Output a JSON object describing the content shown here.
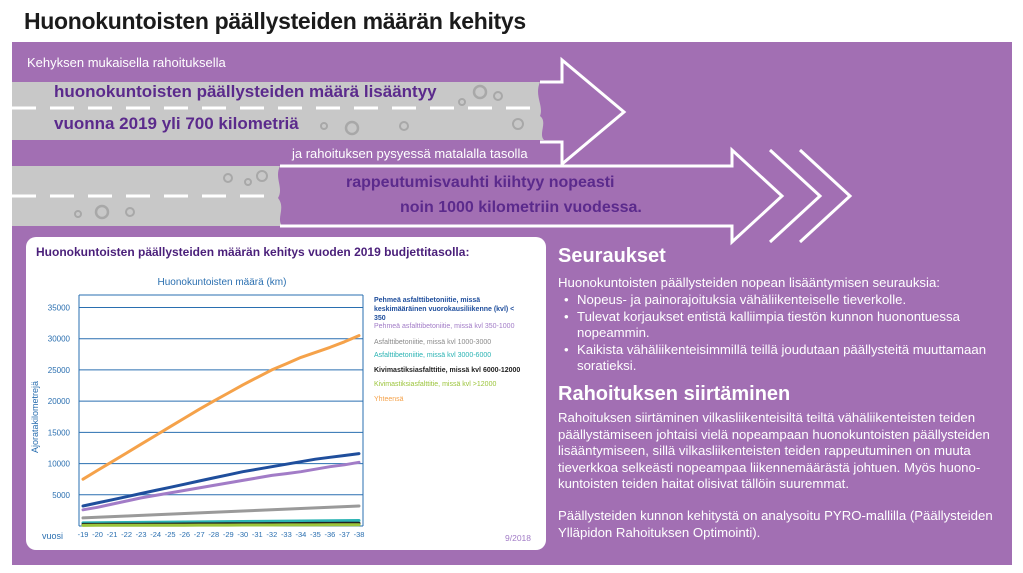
{
  "page": {
    "title": "Huonokuntoisten päällysteiden määrän kehitys",
    "road1_caption": "Kehyksen mukaisella rahoituksella",
    "road1_line1": "huonokuntoisten päällysteiden määrä lisääntyy",
    "road1_line2": "vuonna 2019 yli 700 kilometriä",
    "road2_caption": "ja rahoituksen pysyessä matalalla tasolla",
    "road2_line1": "rappeutumisvauhti kiihtyy nopeasti",
    "road2_line2": "noin 1000 kilometriin vuodessa.",
    "colors": {
      "panel": "#a26fb3",
      "road": "#c8c8c8",
      "text_purple": "#5b2a8c"
    }
  },
  "consequences": {
    "heading": "Seuraukset",
    "intro": "Huonokuntoisten päällysteiden nopean lisääntymisen seurauksia:",
    "bullets": [
      "Nopeus- ja painorajoituksia vähäliikenteiselle tieverkolle.",
      "Tulevat korjaukset entistä kalliimpia tiestön kunnon huonontuessa nopeammin.",
      "Kaikista vähäliikenteisimmillä teillä joudutaan päällysteitä muuttamaan soratieksi."
    ]
  },
  "transfer": {
    "heading": "Rahoituksen siirtäminen",
    "paragraph1": "Rahoituksen siirtäminen vilkasliikenteisiltä teiltä vähäliikenteisten teiden päällystämiseen johtaisi vielä nopeampaan huonokuntoisten päällysteiden lisääntymiseen, sillä vilkasliikenteisten teiden rappeutuminen on muuta tieverkkoa selkeästi nopeampaa liikennemäärästä johtuen. Myös huono-kuntoisten teiden haitat olisivat tällöin suuremmat.",
    "paragraph2": "Päällysteiden kunnon kehitystä on analysoitu PYRO-mallilla (Päällysteiden Ylläpidon Rahoituksen Optimointi)."
  },
  "chart_data": {
    "type": "line",
    "title": "Huonokuntoisten päällysteiden määrän kehitys vuoden 2019 budjettitasolla:",
    "subtitle": "Huonokuntoisten määrä (km)",
    "ylabel": "Ajoratakilometrejä",
    "xlabel": "vuosi",
    "date_note": "9/2018",
    "ylim": [
      0,
      37000
    ],
    "yticks": [
      5000,
      10000,
      15000,
      20000,
      25000,
      30000,
      35000
    ],
    "categories": [
      "-19",
      "-20",
      "-21",
      "-22",
      "-23",
      "-24",
      "-25",
      "-26",
      "-27",
      "-28",
      "-29",
      "-30",
      "-31",
      "-32",
      "-33",
      "-34",
      "-35",
      "-36",
      "-37",
      "-38"
    ],
    "grid": true,
    "legend_position": "right",
    "series": [
      {
        "name": "Pehmeä asfalttibetoniitie, missä keskimääräinen vuorokausiliikenne (kvl) < 350",
        "color": "#1f4e9c",
        "values": [
          3200,
          3700,
          4200,
          4700,
          5200,
          5700,
          6200,
          6700,
          7200,
          7700,
          8200,
          8700,
          9100,
          9500,
          9900,
          10300,
          10700,
          11000,
          11300,
          11600
        ]
      },
      {
        "name": "Pehmeä asfalttibetoniitie, missä kvl 350-1000",
        "color": "#a27cc7",
        "values": [
          2600,
          3000,
          3500,
          4000,
          4500,
          4900,
          5300,
          5700,
          6100,
          6500,
          6900,
          7300,
          7700,
          8100,
          8400,
          8700,
          9100,
          9500,
          9800,
          10200
        ]
      },
      {
        "name": "Asfalttibetoniitie, missä kvl 1000-3000",
        "color": "#9a9a9a",
        "values": [
          1300,
          1400,
          1500,
          1600,
          1700,
          1800,
          1900,
          2000,
          2100,
          2200,
          2300,
          2400,
          2500,
          2600,
          2700,
          2800,
          2900,
          3000,
          3100,
          3200
        ]
      },
      {
        "name": "Asfalttibetoniitie, missä kvl 3000-6000",
        "color": "#2ab3b3",
        "values": [
          500,
          520,
          540,
          560,
          580,
          600,
          620,
          640,
          660,
          680,
          700,
          720,
          740,
          760,
          780,
          800,
          820,
          840,
          860,
          880
        ]
      },
      {
        "name": "Kivimastiksiasfalttitie, missä kvl 6000-12000",
        "color": "#222222",
        "values": [
          250,
          260,
          270,
          280,
          290,
          300,
          310,
          320,
          330,
          340,
          350,
          360,
          370,
          380,
          390,
          400,
          410,
          420,
          430,
          440
        ]
      },
      {
        "name": "Kivimastiksiasfalttitie, missä kvl >12000",
        "color": "#9bc43a",
        "values": [
          100,
          105,
          110,
          115,
          120,
          125,
          130,
          135,
          140,
          145,
          150,
          155,
          160,
          165,
          170,
          175,
          180,
          185,
          190,
          195
        ]
      },
      {
        "name": "Yhteensä",
        "color": "#f5a24a",
        "values": [
          7500,
          8900,
          10300,
          11700,
          13100,
          14500,
          15900,
          17300,
          18700,
          20000,
          21300,
          22600,
          23800,
          25000,
          26000,
          27000,
          27800,
          28600,
          29500,
          30500
        ]
      }
    ],
    "legend_text_colors": [
      "#1f4e9c",
      "#a27cc7",
      "#8a8a8a",
      "#2ab3b3",
      "#222222",
      "#9bc43a",
      "#f5a24a"
    ]
  }
}
